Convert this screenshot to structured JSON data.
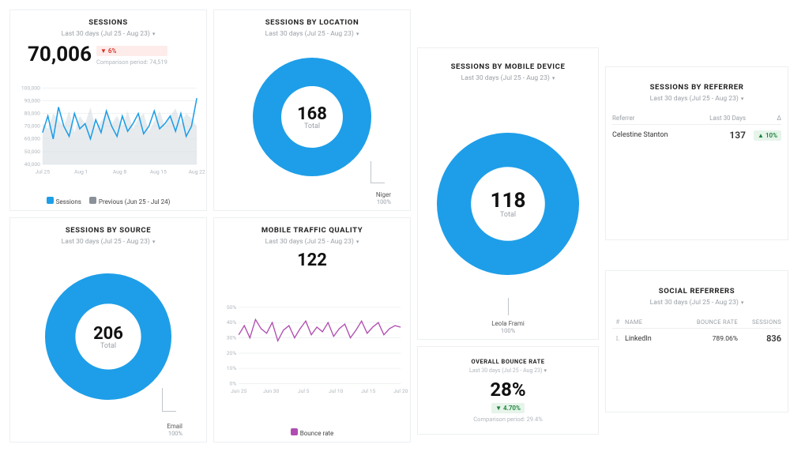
{
  "dateRange": "Last 30 days (Jul 25 - Aug 23)",
  "colors": {
    "primary": "#1e9ee8",
    "primaryFill": "#1e9ee8",
    "previousFill": "#d7dde2",
    "purple": "#b04db0",
    "donut": "#1e9ee8",
    "red": "#d93025",
    "redBg": "#fdecea",
    "green": "#188038",
    "greenBg": "#e6f4ea",
    "gridline": "#eef1f3",
    "axis": "#b0b7bd",
    "border": "#eceff1",
    "text": "#333333"
  },
  "sessions": {
    "title": "SESSIONS",
    "value": "70,006",
    "delta": "6%",
    "deltaDir": "down",
    "comparison": "Comparison period: 74,519",
    "chart": {
      "type": "line+area",
      "ylim": [
        40000,
        100000
      ],
      "yticks": [
        "40,000",
        "50,000",
        "60,000",
        "70,000",
        "80,000",
        "90,000",
        "100,000"
      ],
      "xlabels": [
        "Jul 25",
        "Aug 1",
        "Aug 8",
        "Aug 15",
        "Aug 22"
      ],
      "series_current": [
        65000,
        78000,
        60000,
        85000,
        70000,
        62000,
        80000,
        68000,
        72000,
        60000,
        75000,
        65000,
        82000,
        70000,
        62000,
        78000,
        66000,
        72000,
        80000,
        64000,
        70000,
        82000,
        68000,
        72000,
        78000,
        66000,
        80000,
        62000,
        70000,
        92000
      ],
      "series_previous": [
        72000,
        68000,
        80000,
        75000,
        70000,
        82000,
        65000,
        78000,
        72000,
        85000,
        68000,
        74000,
        80000,
        72000,
        78000,
        70000,
        82000,
        68000,
        76000,
        80000,
        66000,
        74000,
        82000,
        70000,
        78000,
        84000,
        72000,
        80000,
        76000,
        70000
      ],
      "line_color": "#1e9ee8",
      "line_width": 1.6,
      "prev_fill": "#d7dde2",
      "prev_opacity": 0.6
    },
    "legend": [
      {
        "swatch": "#1e9ee8",
        "label": "Sessions",
        "checked": true
      },
      {
        "swatch": "#8a9199",
        "label": "Previous (Jun 25 - Jul 24)",
        "checked": true
      }
    ]
  },
  "sessionsByLocation": {
    "title": "SESSIONS BY LOCATION",
    "donut": {
      "color": "#1e9ee8",
      "thickness": 0.34
    },
    "centerValue": "168",
    "centerSub": "Total",
    "slice": {
      "label": "Niger",
      "pct": "100%"
    }
  },
  "sessionsBySource": {
    "title": "SESSIONS BY SOURCE",
    "donut": {
      "color": "#1e9ee8",
      "thickness": 0.34
    },
    "centerValue": "206",
    "centerSub": "Total",
    "slice": {
      "label": "Email",
      "pct": "100%"
    }
  },
  "mobileTrafficQuality": {
    "title": "MOBILE TRAFFIC QUALITY",
    "value": "122",
    "chart": {
      "type": "line",
      "ylim": [
        0,
        50
      ],
      "yticks": [
        "0%",
        "10%",
        "20%",
        "30%",
        "40%",
        "50%"
      ],
      "xlabels": [
        "Jun 25",
        "Jun 30",
        "Jul 5",
        "Jul 10",
        "Jul 15",
        "Jul 20"
      ],
      "series": [
        32,
        38,
        30,
        42,
        36,
        33,
        40,
        28,
        35,
        38,
        30,
        36,
        41,
        32,
        37,
        34,
        40,
        31,
        36,
        39,
        30,
        35,
        41,
        33,
        37,
        40,
        32,
        36,
        38,
        37
      ],
      "line_color": "#b04db0",
      "line_width": 1.4
    },
    "legend": [
      {
        "swatch": "#b04db0",
        "label": "Bounce rate",
        "checked": true
      }
    ]
  },
  "sessionsByMobile": {
    "title": "SESSIONS BY MOBILE DEVICE",
    "donut": {
      "color": "#1e9ee8",
      "thickness": 0.32
    },
    "centerValue": "118",
    "centerSub": "Total",
    "slice": {
      "label": "Leola Frami",
      "pct": "100%"
    }
  },
  "overallBounceRate": {
    "title": "OVERALL BOUNCE RATE",
    "value": "28%",
    "delta": "4.70%",
    "deltaDir": "down-green",
    "comparison": "Comparison period: 29.4%"
  },
  "sessionsByReferrer": {
    "title": "SESSIONS BY REFERRER",
    "columns": [
      "Referrer",
      "Last 30 Days",
      "Δ"
    ],
    "rows": [
      {
        "referrer": "Celestine Stanton",
        "value": "137",
        "delta": "10%",
        "deltaDir": "up"
      }
    ]
  },
  "socialReferrers": {
    "title": "SOCIAL REFERRERS",
    "columns": [
      "#",
      "NAME",
      "BOUNCE RATE",
      "SESSIONS"
    ],
    "rows": [
      {
        "icon": "linkedin",
        "name": "LinkedIn",
        "bounceRate": "789.06%",
        "sessions": "836"
      }
    ]
  }
}
